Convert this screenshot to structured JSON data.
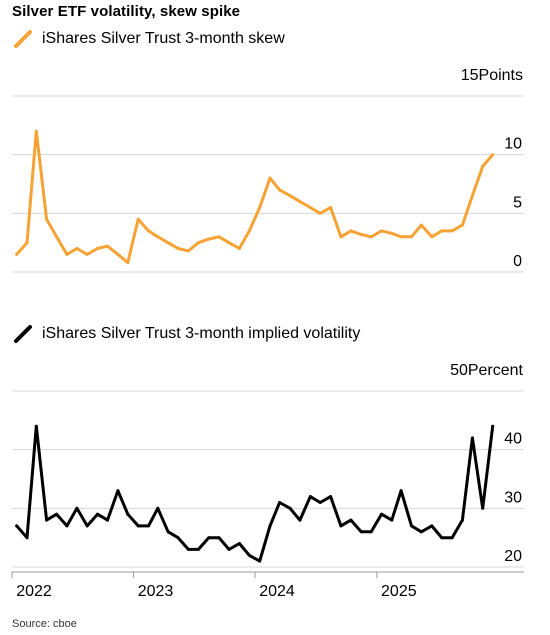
{
  "title": "Silver ETF volatility, skew spike",
  "source": "Source: cboe",
  "colors": {
    "skew": "#F7A234",
    "iv": "#000000",
    "grid": "#d6d6d6",
    "axis": "#999999"
  },
  "chart_data": [
    {
      "type": "line",
      "series": [
        {
          "name": "iShares Silver Trust 3-month skew"
        }
      ],
      "unit_label": "Points",
      "ylim": [
        0,
        15
      ],
      "yticks": [
        {
          "value": 15,
          "label": "15"
        },
        {
          "value": 10,
          "label": "10"
        },
        {
          "value": 5,
          "label": "5"
        },
        {
          "value": 0,
          "label": "0"
        }
      ],
      "grid": true,
      "x": [
        "2022-01",
        "2022-02",
        "2022-03",
        "2022-04",
        "2022-05",
        "2022-06",
        "2022-07",
        "2022-08",
        "2022-09",
        "2022-10",
        "2022-11",
        "2022-12",
        "2023-01",
        "2023-02",
        "2023-03",
        "2023-04",
        "2023-05",
        "2023-06",
        "2023-07",
        "2023-08",
        "2023-09",
        "2023-10",
        "2023-11",
        "2023-12",
        "2024-01",
        "2024-02",
        "2024-03",
        "2024-04",
        "2024-05",
        "2024-06",
        "2024-07",
        "2024-08",
        "2024-09",
        "2024-10",
        "2024-11",
        "2024-12",
        "2025-01",
        "2025-02",
        "2025-03",
        "2025-04",
        "2025-05",
        "2025-06",
        "2025-07",
        "2025-08",
        "2025-09",
        "2025-10",
        "2025-11",
        "2025-12"
      ],
      "y": [
        1.5,
        2.5,
        12.0,
        4.5,
        3.0,
        1.5,
        2.0,
        1.5,
        2.0,
        2.2,
        1.5,
        0.8,
        4.5,
        3.5,
        3.0,
        2.5,
        2.0,
        1.8,
        2.5,
        2.8,
        3.0,
        2.5,
        2.0,
        3.5,
        5.5,
        8.0,
        7.0,
        6.5,
        6.0,
        5.5,
        5.0,
        5.5,
        3.0,
        3.5,
        3.2,
        3.0,
        3.5,
        3.3,
        3.0,
        3.0,
        4.0,
        3.0,
        3.5,
        3.5,
        4.0,
        6.5,
        9.0,
        10.0
      ]
    },
    {
      "type": "line",
      "series": [
        {
          "name": "iShares Silver Trust 3-month implied volatility"
        }
      ],
      "unit_label": "Percent",
      "ylim": [
        20,
        50
      ],
      "yticks": [
        {
          "value": 50,
          "label": "50"
        },
        {
          "value": 40,
          "label": "40"
        },
        {
          "value": 30,
          "label": "30"
        },
        {
          "value": 20,
          "label": "20"
        }
      ],
      "grid": true,
      "x": [
        "2022-01",
        "2022-02",
        "2022-03",
        "2022-04",
        "2022-05",
        "2022-06",
        "2022-07",
        "2022-08",
        "2022-09",
        "2022-10",
        "2022-11",
        "2022-12",
        "2023-01",
        "2023-02",
        "2023-03",
        "2023-04",
        "2023-05",
        "2023-06",
        "2023-07",
        "2023-08",
        "2023-09",
        "2023-10",
        "2023-11",
        "2023-12",
        "2024-01",
        "2024-02",
        "2024-03",
        "2024-04",
        "2024-05",
        "2024-06",
        "2024-07",
        "2024-08",
        "2024-09",
        "2024-10",
        "2024-11",
        "2024-12",
        "2025-01",
        "2025-02",
        "2025-03",
        "2025-04",
        "2025-05",
        "2025-06",
        "2025-07",
        "2025-08",
        "2025-09",
        "2025-10",
        "2025-11",
        "2025-12"
      ],
      "y": [
        27,
        25,
        44,
        28,
        29,
        27,
        30,
        27,
        29,
        28,
        33,
        29,
        27,
        27,
        30,
        26,
        25,
        23,
        23,
        25,
        25,
        23,
        24,
        22,
        21,
        27,
        31,
        30,
        28,
        32,
        31,
        32,
        27,
        28,
        26,
        26,
        29,
        28,
        33,
        27,
        26,
        27,
        25,
        25,
        28,
        42,
        30,
        44
      ]
    }
  ],
  "xaxis": {
    "ticks": [
      "2022",
      "2023",
      "2024",
      "2025"
    ]
  }
}
